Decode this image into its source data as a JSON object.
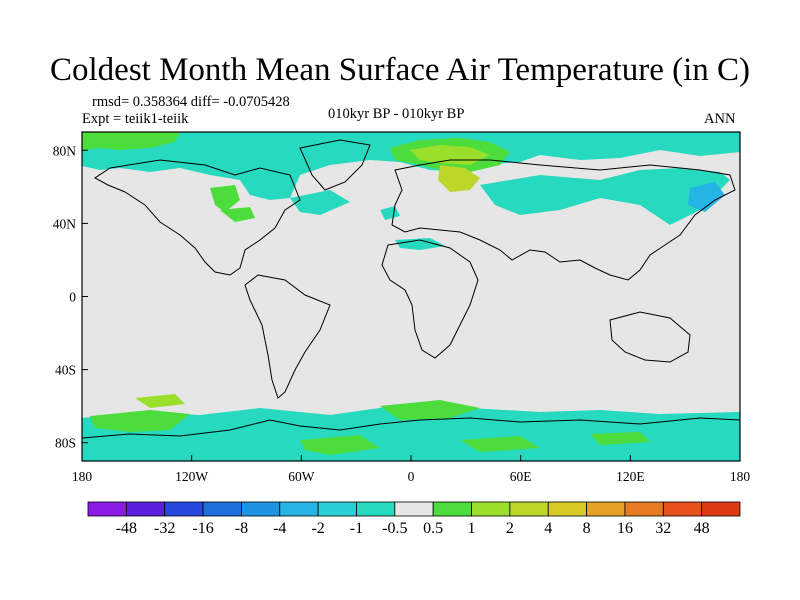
{
  "title": "Coldest Month Mean Surface Air Temperature (in C)",
  "stats": {
    "rmsd_diff": "rmsd= 0.358364 diff= -0.0705428",
    "experiment": "Expt = teiik1-teiik",
    "period": "010kyr BP - 010kyr BP",
    "season": "ANN"
  },
  "map": {
    "projection": "cylindrical-equidistant",
    "lon_range": [
      -180,
      180
    ],
    "lat_range": [
      -90,
      90
    ],
    "x_ticks": [
      "180",
      "120W",
      "60W",
      "0",
      "60E",
      "120E",
      "180"
    ],
    "y_ticks": [
      "80N",
      "40N",
      "0",
      "40S",
      "80S"
    ],
    "background_color": "#e6e6e6",
    "coast_color": "#000000"
  },
  "colorbar": {
    "labels": [
      "-48",
      "-32",
      "-16",
      "-8",
      "-4",
      "-2",
      "-1",
      "-0.5",
      "0.5",
      "1",
      "2",
      "4",
      "8",
      "16",
      "32",
      "48"
    ],
    "colors": [
      "#8c1ce5",
      "#5a1edf",
      "#2847dc",
      "#1f6fdf",
      "#1f93e3",
      "#25b4e4",
      "#2acfd5",
      "#26d9bf",
      "#e6e6e6",
      "#4cdc3c",
      "#99df2c",
      "#bcd62a",
      "#d9c925",
      "#e3a226",
      "#e77b24",
      "#e6511c",
      "#dc3a14"
    ]
  }
}
